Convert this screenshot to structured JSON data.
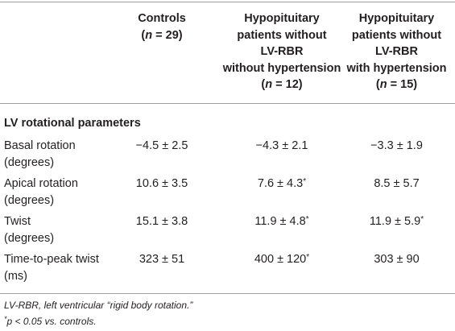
{
  "columns": [
    {
      "line1": "Controls",
      "n_label": "n",
      "n_value": "29",
      "lines": []
    },
    {
      "line1": "Hypopituitary",
      "lines": [
        "patients without",
        "LV-RBR",
        "without hypertension"
      ],
      "n_label": "n",
      "n_value": "12"
    },
    {
      "line1": "Hypopituitary",
      "lines": [
        "patients without",
        "LV-RBR",
        "with hypertension"
      ],
      "n_label": "n",
      "n_value": "15"
    }
  ],
  "section_title": "LV rotational parameters",
  "rows": [
    {
      "label1": "Basal rotation",
      "label2": "(degrees)",
      "values": [
        {
          "v": "−4.5 ± 2.5",
          "sup": ""
        },
        {
          "v": "−4.3 ± 2.1",
          "sup": ""
        },
        {
          "v": "−3.3 ± 1.9",
          "sup": ""
        }
      ]
    },
    {
      "label1": "Apical rotation",
      "label2": "(degrees)",
      "values": [
        {
          "v": "10.6 ± 3.5",
          "sup": ""
        },
        {
          "v": "7.6 ± 4.3",
          "sup": "*"
        },
        {
          "v": "8.5 ± 5.7",
          "sup": ""
        }
      ]
    },
    {
      "label1": "Twist",
      "label2": "(degrees)",
      "values": [
        {
          "v": "15.1 ± 3.8",
          "sup": ""
        },
        {
          "v": "11.9 ± 4.8",
          "sup": "*"
        },
        {
          "v": "11.9 ± 5.9",
          "sup": "*"
        }
      ]
    },
    {
      "label1": "Time-to-peak twist",
      "label2": "(ms)",
      "values": [
        {
          "v": "323 ± 51",
          "sup": ""
        },
        {
          "v": "400 ± 120",
          "sup": "*"
        },
        {
          "v": "303 ± 90",
          "sup": ""
        }
      ]
    }
  ],
  "footnotes": {
    "abbrev": "LV-RBR, left ventricular “rigid body rotation.”",
    "sig_mark": "*",
    "sig_text": "p < 0.05 vs. controls."
  }
}
